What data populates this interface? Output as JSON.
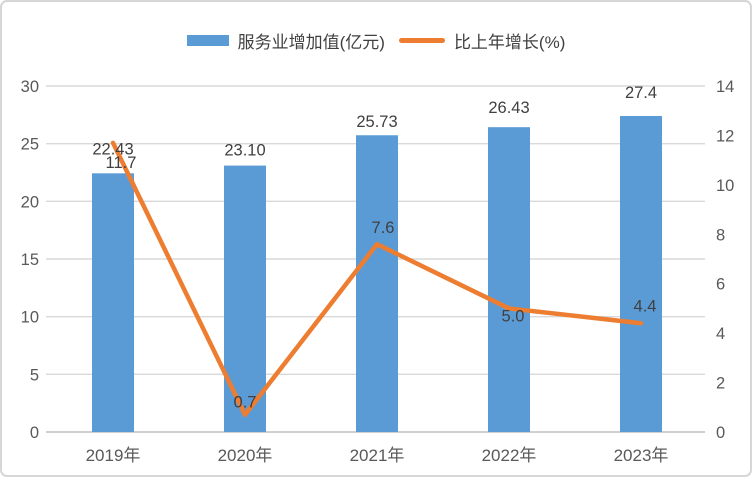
{
  "colors": {
    "bar": "#5B9BD5",
    "line": "#ED7D31",
    "grid": "#D9D9D9",
    "baseline": "#BFBFBF",
    "tick_text": "#595959",
    "data_label_text": "#404040",
    "frame_border": "#D6D6D6",
    "background": "#FFFFFF"
  },
  "chart_data": {
    "type": "bar",
    "subtype": "bar+line combo",
    "title": "",
    "categories": [
      "2019年",
      "2020年",
      "2021年",
      "2022年",
      "2023年"
    ],
    "series": [
      {
        "name": "服务业增加值(亿元)",
        "kind": "bar",
        "axis": "left",
        "color": "#5B9BD5",
        "values": [
          22.43,
          23.1,
          25.73,
          26.43,
          27.4
        ],
        "labels": [
          "22.43",
          "23.10",
          "25.73",
          "26.43",
          "27.4"
        ]
      },
      {
        "name": "比上年增长(%)",
        "kind": "line",
        "axis": "right",
        "color": "#ED7D31",
        "values": [
          11.7,
          0.7,
          7.6,
          5.0,
          4.4
        ],
        "labels": [
          "11.7",
          "0.7",
          "7.6",
          "5.0",
          "4.4"
        ]
      }
    ],
    "left_axis": {
      "min": 0,
      "max": 30,
      "step": 5,
      "ticks": [
        "0",
        "5",
        "10",
        "15",
        "20",
        "25",
        "30"
      ]
    },
    "right_axis": {
      "min": 0,
      "max": 14,
      "step": 2,
      "ticks": [
        "0",
        "2",
        "4",
        "6",
        "8",
        "10",
        "12",
        "14"
      ]
    },
    "grid": true,
    "legend_position": "top"
  }
}
